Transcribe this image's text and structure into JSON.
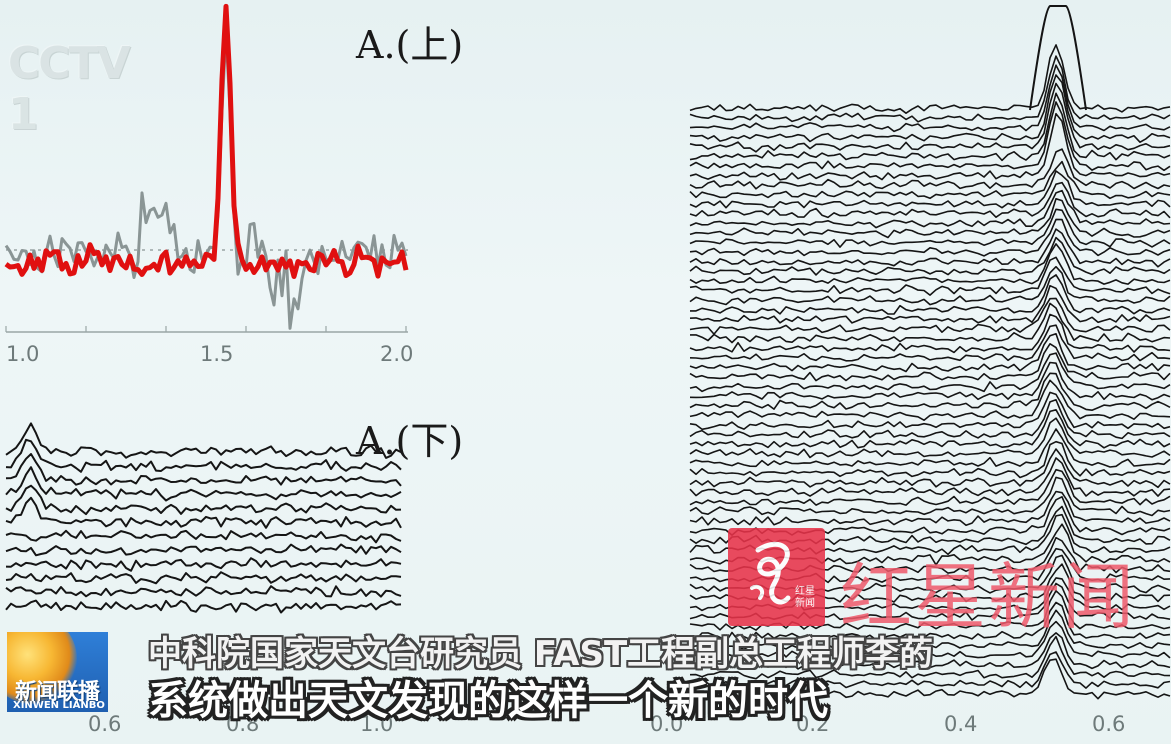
{
  "panels": {
    "top": {
      "title": "A.(上)",
      "x_ticks": [
        "1.0",
        "1.5",
        "2.0"
      ]
    },
    "bottom": {
      "title": "A.(下)",
      "x_ticks": [
        "0.6",
        "0.8",
        "1.0"
      ]
    },
    "right": {
      "x_ticks": [
        "0.0",
        "0.2",
        "0.4",
        "0.6"
      ]
    }
  },
  "overlays": {
    "channel_logo": {
      "text": "CCTV 1",
      "icon": "cctv-channel-logo"
    },
    "news_logo": {
      "text_zh": "新闻联播",
      "text_en": "XINWEN LIANBO",
      "icon": "xinwen-lianbo-globe-logo"
    },
    "watermark": {
      "text": "红星新闻",
      "badge_text": "红星新闻",
      "icon": "red-star-news-logo",
      "color": "#e8334a"
    }
  },
  "subtitles": {
    "line1": "中科院国家天文台研究员 FAST工程副总工程师李菂",
    "line2": "系统做出天文发现的这样一个新的时代"
  },
  "colors": {
    "background": "#e8f2f3",
    "trace_red": "#e01010",
    "trace_gray": "#8a9595",
    "trace_black": "#151515"
  }
}
